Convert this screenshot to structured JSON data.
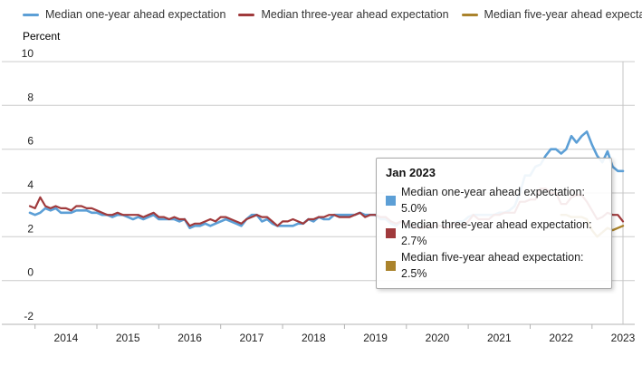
{
  "legend": {
    "items": [
      {
        "label": "Median one-year ahead expectation",
        "color": "#5c9fd6"
      },
      {
        "label": "Median three-year ahead expectation",
        "color": "#a03a3c"
      },
      {
        "label": "Median five-year ahead expectation",
        "color": "#aa832c"
      }
    ]
  },
  "chart_data": {
    "type": "line",
    "title": "",
    "ylabel": "Percent",
    "ylim": [
      -2,
      10
    ],
    "yticks": [
      10,
      8,
      6,
      4,
      2,
      0,
      -2
    ],
    "grid": "horizontal",
    "legend_position": "top",
    "x_start": "2013-06",
    "x_end": "2023-01",
    "xticks": [
      "2014",
      "2015",
      "2016",
      "2017",
      "2018",
      "2019",
      "2020",
      "2021",
      "2022",
      "2023"
    ],
    "hover_x": "Jan 2023",
    "series": [
      {
        "name": "Median one-year ahead expectation",
        "color": "#5c9fd6",
        "start_index": 0,
        "values": [
          3.1,
          3.0,
          3.1,
          3.3,
          3.2,
          3.3,
          3.1,
          3.1,
          3.1,
          3.2,
          3.2,
          3.2,
          3.1,
          3.1,
          3.0,
          3.0,
          2.9,
          3.0,
          3.0,
          2.9,
          2.8,
          2.9,
          2.8,
          2.9,
          3.0,
          2.8,
          2.8,
          2.8,
          2.8,
          2.7,
          2.8,
          2.4,
          2.5,
          2.5,
          2.6,
          2.5,
          2.6,
          2.7,
          2.8,
          2.7,
          2.6,
          2.5,
          2.8,
          3.0,
          3.0,
          2.7,
          2.8,
          2.6,
          2.5,
          2.5,
          2.5,
          2.5,
          2.6,
          2.6,
          2.8,
          2.7,
          2.9,
          2.8,
          2.8,
          3.0,
          3.0,
          3.0,
          3.0,
          3.0,
          3.1,
          3.0,
          3.0,
          3.0,
          2.8,
          2.8,
          2.6,
          2.5,
          2.7,
          2.6,
          2.4,
          2.5,
          2.4,
          2.5,
          2.5,
          2.5,
          2.5,
          2.5,
          2.6,
          2.7,
          2.7,
          2.9,
          3.0,
          3.0,
          3.0,
          3.0,
          3.0,
          3.1,
          3.1,
          3.2,
          3.4,
          4.0,
          4.8,
          4.8,
          5.2,
          5.3,
          5.7,
          6.0,
          6.0,
          5.8,
          6.0,
          6.6,
          6.3,
          6.6,
          6.8,
          6.2,
          5.7,
          5.4,
          5.9,
          5.2,
          5.0,
          5.0
        ]
      },
      {
        "name": "Median three-year ahead expectation",
        "color": "#a03a3c",
        "start_index": 0,
        "values": [
          3.4,
          3.3,
          3.8,
          3.4,
          3.3,
          3.4,
          3.3,
          3.3,
          3.2,
          3.4,
          3.4,
          3.3,
          3.3,
          3.2,
          3.1,
          3.0,
          3.0,
          3.1,
          3.0,
          3.0,
          3.0,
          3.0,
          2.9,
          3.0,
          3.1,
          2.9,
          2.9,
          2.8,
          2.9,
          2.8,
          2.8,
          2.5,
          2.6,
          2.6,
          2.7,
          2.8,
          2.7,
          2.9,
          2.9,
          2.8,
          2.7,
          2.6,
          2.8,
          2.9,
          3.0,
          2.9,
          2.9,
          2.7,
          2.5,
          2.7,
          2.7,
          2.8,
          2.7,
          2.6,
          2.8,
          2.8,
          2.9,
          2.9,
          3.0,
          3.0,
          2.9,
          2.9,
          2.9,
          3.0,
          3.1,
          2.9,
          3.0,
          3.0,
          2.9,
          2.9,
          2.7,
          2.6,
          2.7,
          2.6,
          2.5,
          2.4,
          2.4,
          2.5,
          2.5,
          2.5,
          2.5,
          2.4,
          2.6,
          2.6,
          2.5,
          2.7,
          3.0,
          2.8,
          2.8,
          2.8,
          3.0,
          3.0,
          3.1,
          3.1,
          3.1,
          3.6,
          3.6,
          3.7,
          3.7,
          4.2,
          4.2,
          4.0,
          4.0,
          3.5,
          3.5,
          3.8,
          3.9,
          3.9,
          3.6,
          3.2,
          2.8,
          2.9,
          3.1,
          3.0,
          3.0,
          2.7
        ]
      },
      {
        "name": "Median five-year ahead expectation",
        "color": "#aa832c",
        "start_index": 103,
        "values": [
          3.0,
          3.0,
          2.9,
          2.9,
          2.9,
          2.8,
          2.3,
          2.0,
          2.2,
          2.4,
          2.3,
          2.4,
          2.5
        ]
      }
    ]
  },
  "tooltip": {
    "title": "Jan 2023",
    "rows": [
      {
        "text": "Median one-year ahead expectation: 5.0%",
        "color": "#5c9fd6"
      },
      {
        "text": "Median three-year ahead expectation: 2.7%",
        "color": "#a03a3c"
      },
      {
        "text": "Median five-year ahead expectation: 2.5%",
        "color": "#aa832c"
      }
    ]
  },
  "colors": {
    "grid": "#cccccc",
    "axis": "#b3b3b3",
    "crosshair": "#c4c4c4",
    "tick_text": "#222222"
  }
}
